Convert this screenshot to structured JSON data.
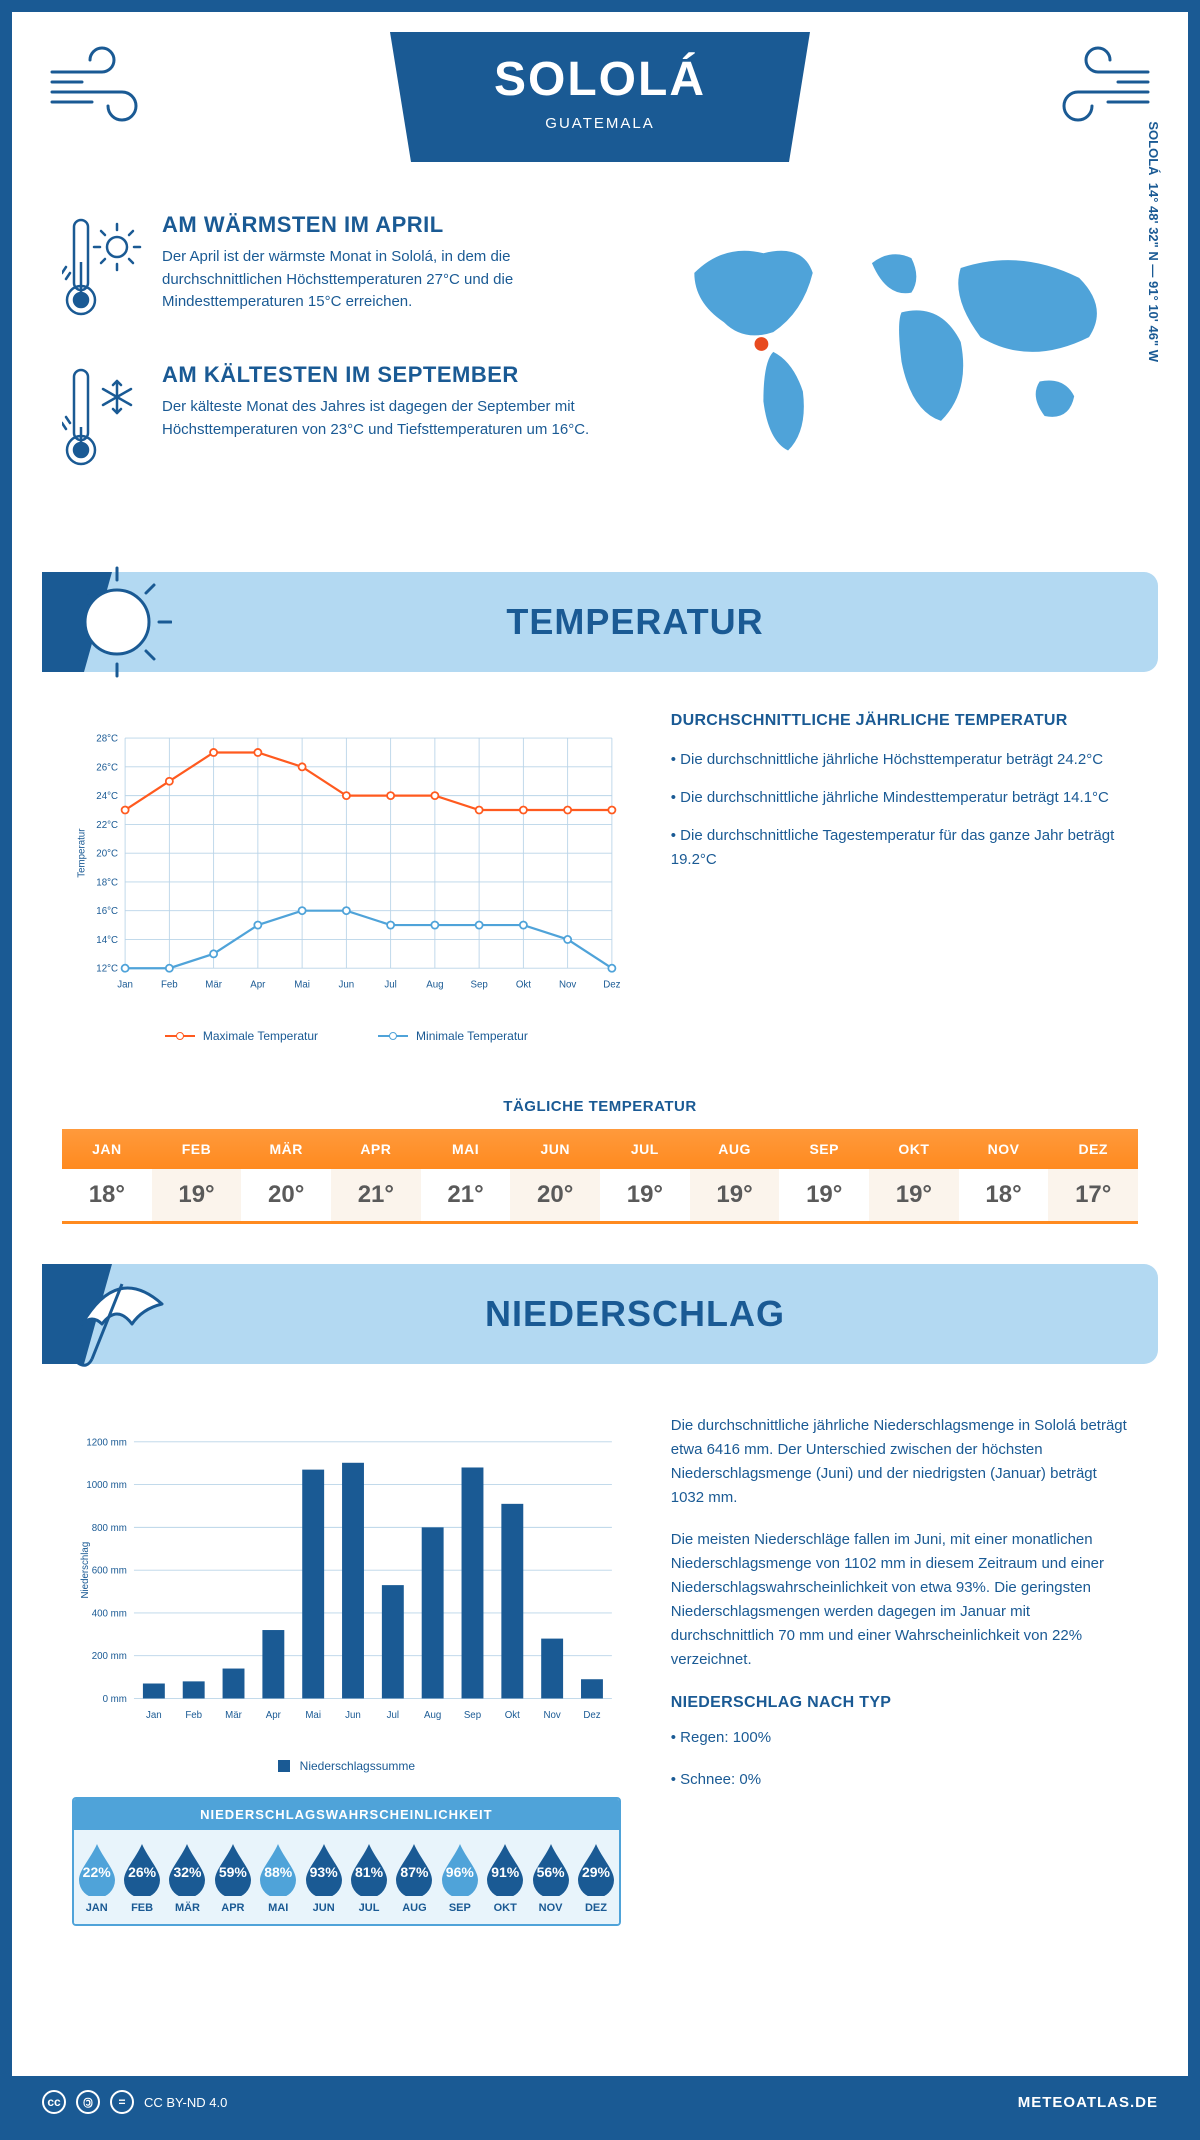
{
  "header": {
    "title": "SOLOLÁ",
    "country": "GUATEMALA",
    "coordinates": "14° 48' 32\" N — 91° 10' 46\" W",
    "coord_label": "SOLOLÁ"
  },
  "colors": {
    "primary": "#1a5a94",
    "sky": "#b3d9f2",
    "accent": "#4fa3d9",
    "orange_top": "#ff9a3c",
    "orange_bot": "#ff8a1f",
    "max_line": "#ff5a1f",
    "min_line": "#4fa3d9",
    "grid": "#b9d4e8",
    "bg": "#ffffff",
    "marker": "#e84a1f"
  },
  "facts": {
    "warm": {
      "title": "AM WÄRMSTEN IM APRIL",
      "body": "Der April ist der wärmste Monat in Sololá, in dem die durchschnittlichen Höchsttemperaturen 27°C und die Mindesttemperaturen 15°C erreichen."
    },
    "cold": {
      "title": "AM KÄLTESTEN IM SEPTEMBER",
      "body": "Der kälteste Monat des Jahres ist dagegen der September mit Höchsttemperaturen von 23°C und Tiefsttemperaturen um 16°C."
    }
  },
  "temperature": {
    "section_title": "TEMPERATUR",
    "chart": {
      "type": "line",
      "months": [
        "Jan",
        "Feb",
        "Mär",
        "Apr",
        "Mai",
        "Jun",
        "Jul",
        "Aug",
        "Sep",
        "Okt",
        "Nov",
        "Dez"
      ],
      "max_values": [
        23,
        25,
        27,
        27,
        26,
        24,
        24,
        24,
        23,
        23,
        23,
        23
      ],
      "min_values": [
        12,
        12,
        13,
        15,
        16,
        16,
        15,
        15,
        15,
        15,
        14,
        12
      ],
      "ylim": [
        12,
        28
      ],
      "ytick_step": 2,
      "y_unit": "°C",
      "y_axis_label": "Temperatur",
      "legend_max": "Maximale Temperatur",
      "legend_min": "Minimale Temperatur",
      "max_color": "#ff5a1f",
      "min_color": "#4fa3d9",
      "grid_color": "#b9d4e8"
    },
    "text": {
      "heading": "DURCHSCHNITTLICHE JÄHRLICHE TEMPERATUR",
      "p1": "• Die durchschnittliche jährliche Höchsttemperatur beträgt 24.2°C",
      "p2": "• Die durchschnittliche jährliche Mindesttemperatur beträgt 14.1°C",
      "p3": "• Die durchschnittliche Tagestemperatur für das ganze Jahr beträgt 19.2°C"
    },
    "daily": {
      "label": "TÄGLICHE TEMPERATUR",
      "months": [
        "JAN",
        "FEB",
        "MÄR",
        "APR",
        "MAI",
        "JUN",
        "JUL",
        "AUG",
        "SEP",
        "OKT",
        "NOV",
        "DEZ"
      ],
      "values": [
        "18°",
        "19°",
        "20°",
        "21°",
        "21°",
        "20°",
        "19°",
        "19°",
        "19°",
        "19°",
        "18°",
        "17°"
      ]
    }
  },
  "precip": {
    "section_title": "NIEDERSCHLAG",
    "chart": {
      "type": "bar",
      "months": [
        "Jan",
        "Feb",
        "Mär",
        "Apr",
        "Mai",
        "Jun",
        "Jul",
        "Aug",
        "Sep",
        "Okt",
        "Nov",
        "Dez"
      ],
      "values": [
        70,
        80,
        140,
        320,
        1070,
        1102,
        530,
        800,
        1080,
        910,
        280,
        90
      ],
      "ylim": [
        0,
        1200
      ],
      "ytick_step": 200,
      "y_unit": " mm",
      "y_axis_label": "Niederschlag",
      "bar_color": "#1a5a94",
      "grid_color": "#b9d4e8",
      "legend": "Niederschlagssumme"
    },
    "text": {
      "p1": "Die durchschnittliche jährliche Niederschlagsmenge in Sololá beträgt etwa 6416 mm. Der Unterschied zwischen der höchsten Niederschlagsmenge (Juni) und der niedrigsten (Januar) beträgt 1032 mm.",
      "p2": "Die meisten Niederschläge fallen im Juni, mit einer monatlichen Niederschlagsmenge von 1102 mm in diesem Zeitraum und einer Niederschlagswahrscheinlichkeit von etwa 93%. Die geringsten Niederschlagsmengen werden dagegen im Januar mit durchschnittlich 70 mm und einer Wahrscheinlichkeit von 22% verzeichnet.",
      "heading": "NIEDERSCHLAG NACH TYP",
      "rain": "• Regen: 100%",
      "snow": "• Schnee: 0%"
    },
    "probability": {
      "heading": "NIEDERSCHLAGSWAHRSCHEINLICHKEIT",
      "months": [
        "JAN",
        "FEB",
        "MÄR",
        "APR",
        "MAI",
        "JUN",
        "JUL",
        "AUG",
        "SEP",
        "OKT",
        "NOV",
        "DEZ"
      ],
      "values": [
        "22%",
        "26%",
        "32%",
        "59%",
        "88%",
        "93%",
        "81%",
        "87%",
        "96%",
        "91%",
        "56%",
        "29%"
      ],
      "light_indices": [
        0,
        4,
        8
      ],
      "light_color": "#4fa3d9",
      "dark_color": "#1a5a94"
    }
  },
  "footer": {
    "license": "CC BY-ND 4.0",
    "brand": "METEOATLAS.DE"
  }
}
